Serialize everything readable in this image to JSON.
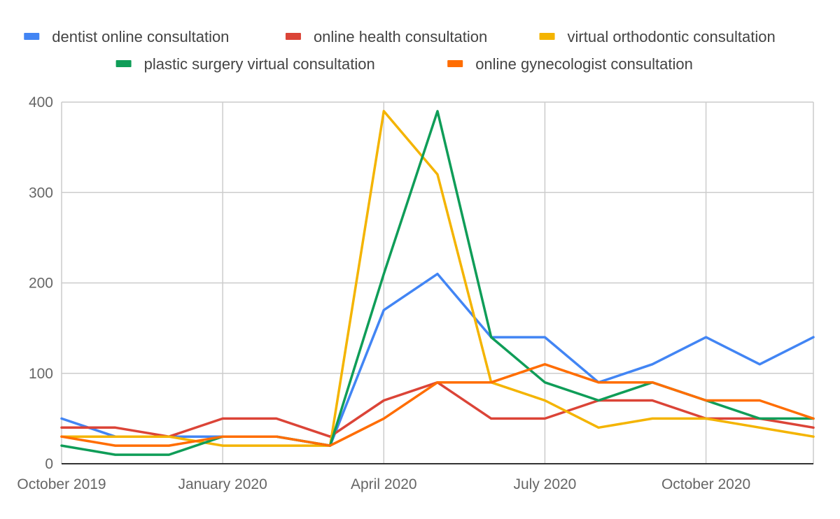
{
  "chart_data": {
    "type": "line",
    "title": "",
    "xlabel": "",
    "ylabel": "",
    "x": [
      "2019-10",
      "2019-11",
      "2019-12",
      "2020-01",
      "2020-02",
      "2020-03",
      "2020-04",
      "2020-05",
      "2020-06",
      "2020-07",
      "2020-08",
      "2020-09",
      "2020-10",
      "2020-11",
      "2020-12"
    ],
    "ylim": [
      0,
      400
    ],
    "yticks": [
      0,
      100,
      200,
      300,
      400
    ],
    "x_tick_labels": [
      {
        "x": "2019-10",
        "label": "October 2019"
      },
      {
        "x": "2020-01",
        "label": "January 2020"
      },
      {
        "x": "2020-04",
        "label": "April 2020"
      },
      {
        "x": "2020-07",
        "label": "July 2020"
      },
      {
        "x": "2020-10",
        "label": "October 2020"
      }
    ],
    "grid": true,
    "legend_position": "top",
    "series": [
      {
        "name": "dentist online consultation",
        "color": "#4285f4",
        "values": [
          50,
          30,
          30,
          30,
          30,
          20,
          170,
          210,
          140,
          140,
          90,
          110,
          140,
          110,
          140
        ]
      },
      {
        "name": "online health consultation",
        "color": "#db4437",
        "values": [
          40,
          40,
          30,
          50,
          50,
          30,
          70,
          90,
          50,
          50,
          70,
          70,
          50,
          50,
          40
        ]
      },
      {
        "name": "virtual orthodontic consultation",
        "color": "#f4b400",
        "values": [
          30,
          30,
          30,
          20,
          20,
          20,
          390,
          320,
          90,
          70,
          40,
          50,
          50,
          40,
          30
        ]
      },
      {
        "name": "plastic surgery virtual consultation",
        "color": "#0f9d58",
        "values": [
          20,
          10,
          10,
          30,
          30,
          20,
          210,
          390,
          140,
          90,
          70,
          90,
          70,
          50,
          50
        ]
      },
      {
        "name": "online gynecologist consultation",
        "color": "#ff6d01",
        "values": [
          30,
          20,
          20,
          30,
          30,
          20,
          50,
          90,
          90,
          110,
          90,
          90,
          70,
          70,
          50
        ]
      }
    ]
  }
}
